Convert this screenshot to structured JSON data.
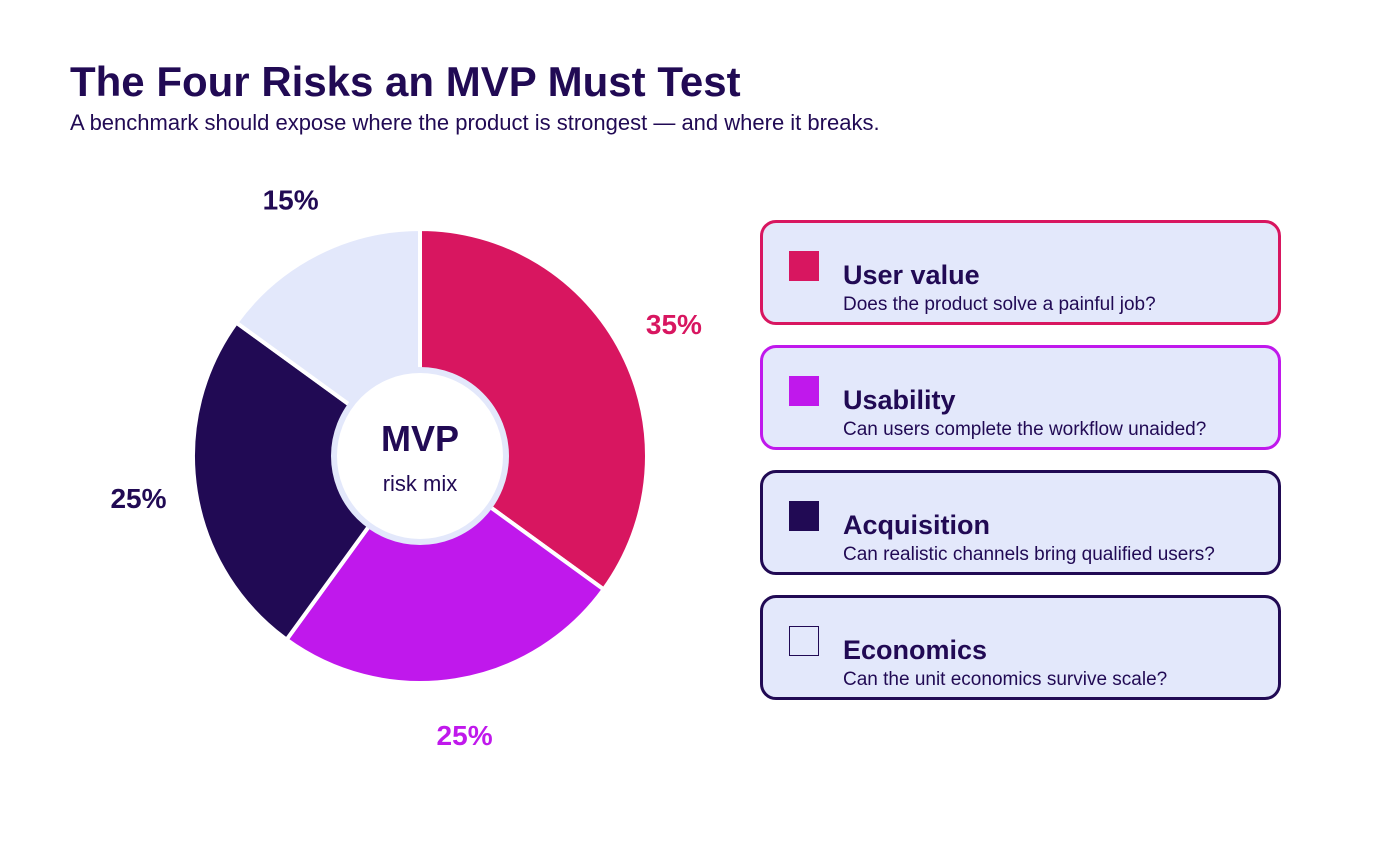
{
  "header": {
    "title": "The Four Risks an MVP Must Test",
    "subtitle": "A benchmark should expose where the product is strongest — and where it breaks."
  },
  "center_label": {
    "main": "MVP",
    "sub": "risk mix"
  },
  "colors": {
    "text": "#210a54",
    "card_background": "#e3e8fb",
    "hole_ring": "#e3e8fb",
    "slice_gap": "#ffffff"
  },
  "chart_data": {
    "type": "pie",
    "variant": "donut",
    "start": "12 o'clock, clockwise",
    "slices": [
      {
        "label": "User value",
        "value": 35,
        "value_label": "35%",
        "color": "#d81660",
        "label_color": "#d81660"
      },
      {
        "label": "Usability",
        "value": 25,
        "value_label": "25%",
        "color": "#c018ec",
        "label_color": "#c018ec"
      },
      {
        "label": "Acquisition",
        "value": 25,
        "value_label": "25%",
        "color": "#210a54",
        "label_color": "#210a54"
      },
      {
        "label": "Economics",
        "value": 15,
        "value_label": "15%",
        "color": "#e3e8fb",
        "label_color": "#210a54"
      }
    ]
  },
  "legend": {
    "placement": "right",
    "items": [
      {
        "title": "User value",
        "description": "Does the product solve a painful job?",
        "color": "#d81660",
        "border_color": "#d81660",
        "swatch_border": "#d81660"
      },
      {
        "title": "Usability",
        "description": "Can users complete the workflow unaided?",
        "color": "#c018ec",
        "border_color": "#c018ec",
        "swatch_border": "#c018ec"
      },
      {
        "title": "Acquisition",
        "description": "Can realistic channels bring qualified users?",
        "color": "#210a54",
        "border_color": "#210a54",
        "swatch_border": "#210a54"
      },
      {
        "title": "Economics",
        "description": "Can the unit economics survive scale?",
        "color": "#e3e8fb",
        "border_color": "#210a54",
        "swatch_border": "#210a54"
      }
    ]
  }
}
